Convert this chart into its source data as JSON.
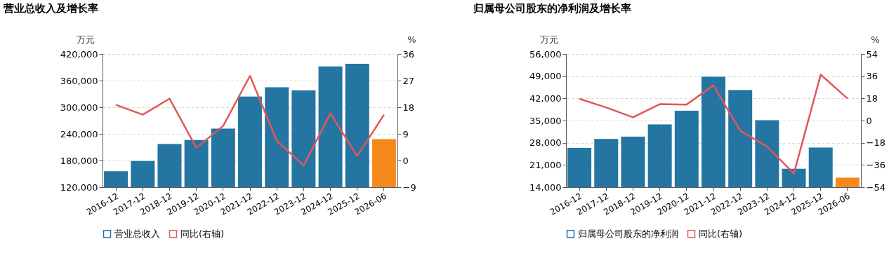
{
  "chart_data": [
    {
      "type": "bar",
      "title": "营业总收入及增长率",
      "ylabel": "万元",
      "y2label": "%",
      "legend": "bottom",
      "grid": "y",
      "categories": [
        "2016-12",
        "2017-12",
        "2018-12",
        "2019-12",
        "2020-12",
        "2021-12",
        "2022-12",
        "2023-12",
        "2024-12",
        "2025-12",
        "2026-06"
      ],
      "ylim": [
        120000,
        420000
      ],
      "yticks": [
        {
          "value": 120000,
          "label": "120,000"
        },
        {
          "value": 180000,
          "label": "180,000"
        },
        {
          "value": 240000,
          "label": "240,000"
        },
        {
          "value": 300000,
          "label": "300,000"
        },
        {
          "value": 360000,
          "label": "360,000"
        },
        {
          "value": 420000,
          "label": "420,000"
        }
      ],
      "y2lim": [
        -9,
        36
      ],
      "y2ticks": [
        -9,
        0,
        9,
        18,
        27,
        36
      ],
      "series": [
        {
          "name": "营业总收入",
          "color": "#2475a2",
          "colors": [
            "#2475a2",
            "#2475a2",
            "#2475a2",
            "#2475a2",
            "#2475a2",
            "#2475a2",
            "#2475a2",
            "#2475a2",
            "#2475a2",
            "#2475a2",
            "#f5891e"
          ],
          "values": [
            156000,
            179000,
            217000,
            226000,
            252000,
            324000,
            345000,
            338000,
            392000,
            398000,
            228000
          ]
        },
        {
          "name": "同比(右轴)",
          "type": "line",
          "axis": "y2",
          "color": "#e05858",
          "values": [
            18.8,
            15.5,
            20.9,
            4.3,
            11.7,
            28.6,
            6.7,
            -1.7,
            15.9,
            1.5,
            15.5
          ]
        }
      ]
    },
    {
      "type": "bar",
      "title": "归属母公司股东的净利润及增长率",
      "ylabel": "万元",
      "y2label": "%",
      "legend": "bottom",
      "grid": "y",
      "categories": [
        "2016-12",
        "2017-12",
        "2018-12",
        "2019-12",
        "2020-12",
        "2021-12",
        "2022-12",
        "2023-12",
        "2024-12",
        "2025-12",
        "2026-06"
      ],
      "ylim": [
        14000,
        56000
      ],
      "yticks": [
        {
          "value": 14000,
          "label": "14,000"
        },
        {
          "value": 21000,
          "label": "21,000"
        },
        {
          "value": 28000,
          "label": "28,000"
        },
        {
          "value": 35000,
          "label": "35,000"
        },
        {
          "value": 42000,
          "label": "42,000"
        },
        {
          "value": 49000,
          "label": "49,000"
        },
        {
          "value": 56000,
          "label": "56,000"
        }
      ],
      "y2lim": [
        -54,
        54
      ],
      "y2ticks": [
        -54,
        -36,
        -18,
        0,
        18,
        36,
        54
      ],
      "series": [
        {
          "name": "归属母公司股东的净利润",
          "color": "#2475a2",
          "colors": [
            "#2475a2",
            "#2475a2",
            "#2475a2",
            "#2475a2",
            "#2475a2",
            "#2475a2",
            "#2475a2",
            "#2475a2",
            "#2475a2",
            "#2475a2",
            "#f5891e"
          ],
          "values": [
            26400,
            29200,
            29900,
            33800,
            38100,
            48800,
            44600,
            35100,
            19800,
            26500,
            17000
          ]
        },
        {
          "name": "同比(右轴)",
          "type": "line",
          "axis": "y2",
          "color": "#e05858",
          "values": [
            17.6,
            10.6,
            2.6,
            13.3,
            13.0,
            28.5,
            -8.3,
            -21.1,
            -43.0,
            37.2,
            17.8
          ]
        }
      ]
    }
  ]
}
